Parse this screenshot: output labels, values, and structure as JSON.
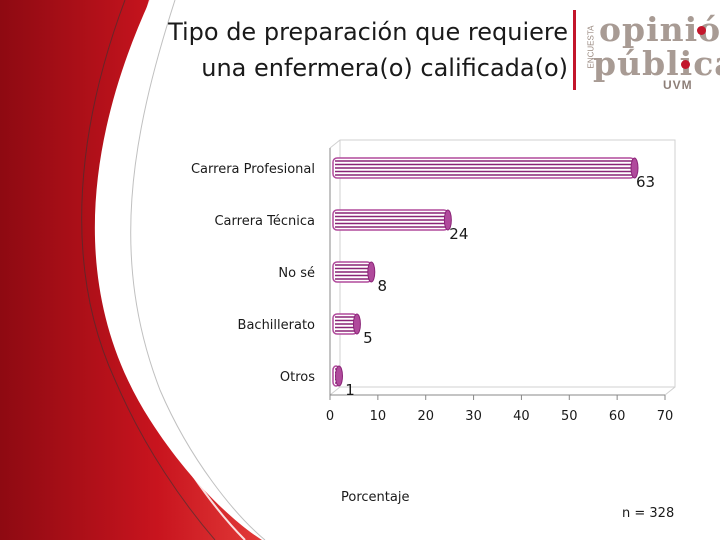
{
  "title_lines": [
    "Tipo de preparación que requiere",
    "una enfermera(o) calificada(o)"
  ],
  "logo": {
    "line1": "opinión",
    "line2": "pública",
    "line3": "UVM",
    "side_text": "ENCUESTA"
  },
  "sample_note": "n = 328",
  "colors": {
    "bar": "#b04a9c",
    "bar_stripe": "#8a2477",
    "accent_red": "#c3162b",
    "axis": "#888888"
  },
  "chart_data": {
    "type": "bar",
    "orientation": "horizontal",
    "categories": [
      "Carrera Profesional",
      "Carrera Técnica",
      "No sé",
      "Bachillerato",
      "Otros"
    ],
    "values": [
      63,
      24,
      8,
      5,
      1
    ],
    "title": "Tipo de preparación que requiere una enfermera(o) calificada(o)",
    "xlabel": "Porcentaje",
    "ylabel": "",
    "xlim": [
      0,
      70
    ],
    "xticks": [
      0,
      10,
      20,
      30,
      40,
      50,
      60,
      70
    ],
    "grid": false,
    "legend": "none"
  }
}
